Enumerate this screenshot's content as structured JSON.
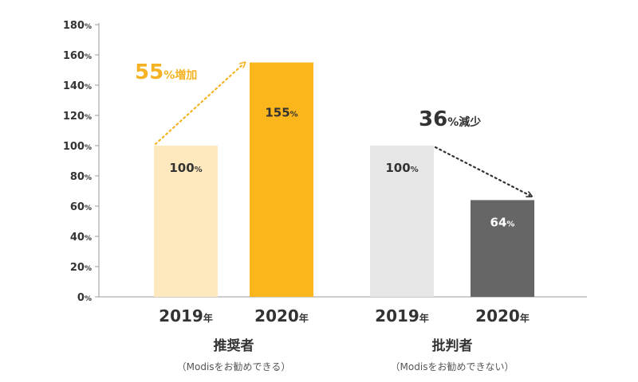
{
  "chart_data": {
    "type": "bar",
    "ylim": [
      0,
      180
    ],
    "yticks": [
      {
        "num": "0",
        "unit": "%"
      },
      {
        "num": "20",
        "unit": "%"
      },
      {
        "num": "40",
        "unit": "%"
      },
      {
        "num": "60",
        "unit": "%"
      },
      {
        "num": "80",
        "unit": "%"
      },
      {
        "num": "100",
        "unit": "%"
      },
      {
        "num": "120",
        "unit": "%"
      },
      {
        "num": "140",
        "unit": "%"
      },
      {
        "num": "160",
        "unit": "%"
      },
      {
        "num": "180",
        "unit": "%"
      }
    ],
    "groups": [
      {
        "name": "推奨者",
        "sub": "（Modisをお勧めできる）",
        "bars": [
          {
            "year": "2019",
            "year_unit": "年",
            "value": 100,
            "label_num": "100",
            "label_unit": "%",
            "color": "#fde9bd",
            "label_color": "#333333"
          },
          {
            "year": "2020",
            "year_unit": "年",
            "value": 155,
            "label_num": "155",
            "label_unit": "%",
            "color": "#fbb61b",
            "label_color": "#333333"
          }
        ],
        "change": {
          "num": "55",
          "unit": "%増加",
          "color": "#f5b324"
        }
      },
      {
        "name": "批判者",
        "sub": "（Modisをお勧めできない）",
        "bars": [
          {
            "year": "2019",
            "year_unit": "年",
            "value": 100,
            "label_num": "100",
            "label_unit": "%",
            "color": "#e6e6e6",
            "label_color": "#333333"
          },
          {
            "year": "2020",
            "year_unit": "年",
            "value": 64,
            "label_num": "64",
            "label_unit": "%",
            "color": "#666666",
            "label_color": "#ffffff"
          }
        ],
        "change": {
          "num": "36",
          "unit": "%減少",
          "color": "#333333"
        }
      }
    ]
  }
}
